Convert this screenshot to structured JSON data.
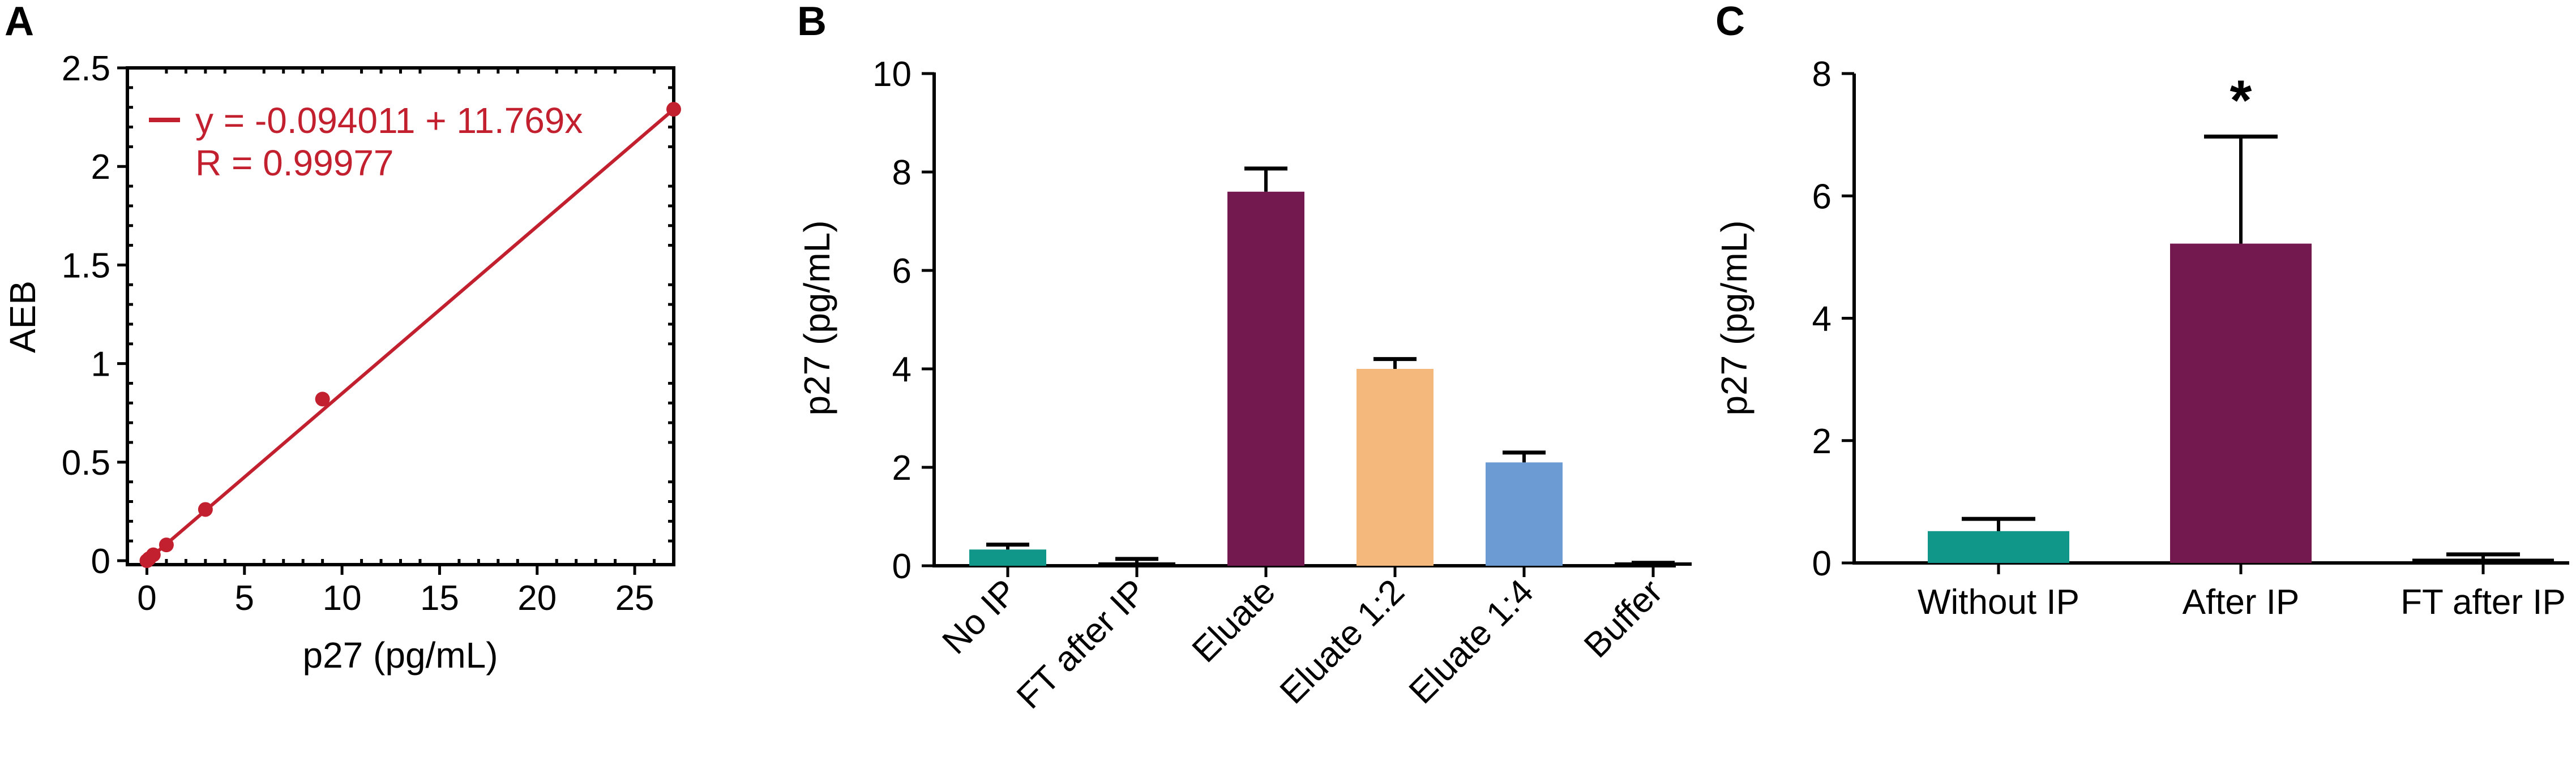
{
  "colors": {
    "fit_red": "#c2202e",
    "teal": "#11978a",
    "purple": "#741850",
    "orange": "#f4b87c",
    "blue": "#6b9bd2",
    "black": "#000000"
  },
  "chart_data": [
    {
      "id": "A",
      "panel_label": "A",
      "type": "scatter",
      "xlabel": "p27 (pg/mL)",
      "ylabel": "AEB",
      "xlim": [
        -1,
        27
      ],
      "ylim": [
        -0.02,
        2.5
      ],
      "xticks": [
        0,
        5,
        10,
        15,
        20,
        25
      ],
      "xtick_labels": [
        "0",
        "5",
        "10",
        "15",
        "20",
        "25"
      ],
      "yticks": [
        0,
        0.5,
        1,
        1.5,
        2,
        2.5
      ],
      "ytick_labels": [
        "0",
        "0.5",
        "1",
        "1.5",
        "2",
        "2.5"
      ],
      "points": [
        {
          "x": 0,
          "y": 0.0
        },
        {
          "x": 0.11,
          "y": 0.01
        },
        {
          "x": 0.33,
          "y": 0.03
        },
        {
          "x": 1.0,
          "y": 0.08
        },
        {
          "x": 3.0,
          "y": 0.26
        },
        {
          "x": 9.0,
          "y": 0.82
        },
        {
          "x": 27,
          "y": 2.29
        }
      ],
      "fit": {
        "intercept": -0.094011,
        "slope": 11.769
      },
      "legend": {
        "equation": "y = -0.094011 + 11.769x",
        "r_value": "R = 0.99977",
        "placement": "top-left"
      },
      "frame": "box"
    },
    {
      "id": "B",
      "panel_label": "B",
      "type": "bar",
      "ylabel": "p27 (pg/mL)",
      "xlabel": "",
      "ylim": [
        0,
        10
      ],
      "yticks": [
        0,
        2,
        4,
        6,
        8,
        10
      ],
      "ytick_labels": [
        "0",
        "2",
        "4",
        "6",
        "8",
        "10"
      ],
      "categories": [
        "No IP",
        "FT after IP",
        "Eluate",
        "Eluate 1:2",
        "Eluate 1:4",
        "Buffer"
      ],
      "values": [
        0.33,
        0.06,
        7.6,
        4.0,
        2.1,
        0.02
      ],
      "errors": [
        0.1,
        0.08,
        0.47,
        0.2,
        0.2,
        0.04
      ],
      "bar_colors": [
        "#11978a",
        "#000000",
        "#741850",
        "#f4b87c",
        "#6b9bd2",
        "#000000"
      ],
      "label_rotation": "45"
    },
    {
      "id": "C",
      "panel_label": "C",
      "type": "bar",
      "ylabel": "p27 (pg/mL)",
      "xlabel": "",
      "ylim": [
        0,
        8
      ],
      "yticks": [
        0,
        2,
        4,
        6,
        8
      ],
      "ytick_labels": [
        "0",
        "2",
        "4",
        "6",
        "8"
      ],
      "categories": [
        "Without IP",
        "After IP",
        "FT after IP"
      ],
      "values": [
        0.52,
        5.22,
        0.07
      ],
      "errors": [
        0.2,
        1.75,
        0.07
      ],
      "bar_colors": [
        "#11978a",
        "#741850",
        "#000000"
      ],
      "annotations": [
        {
          "category": "After IP",
          "text": "*"
        }
      ]
    }
  ]
}
